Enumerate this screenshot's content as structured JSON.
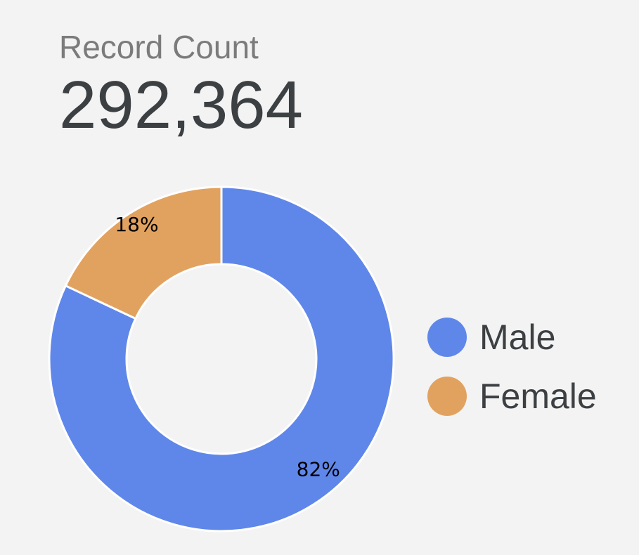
{
  "scorecard": {
    "label": "Record Count",
    "value": "292,364"
  },
  "chart_data": {
    "type": "pie",
    "donut": true,
    "categories": [
      "Male",
      "Female"
    ],
    "values": [
      82,
      18
    ],
    "value_labels": [
      "82%",
      "18%"
    ],
    "colors": [
      "#5f87ea",
      "#e2a25f"
    ],
    "legend_position": "right"
  }
}
